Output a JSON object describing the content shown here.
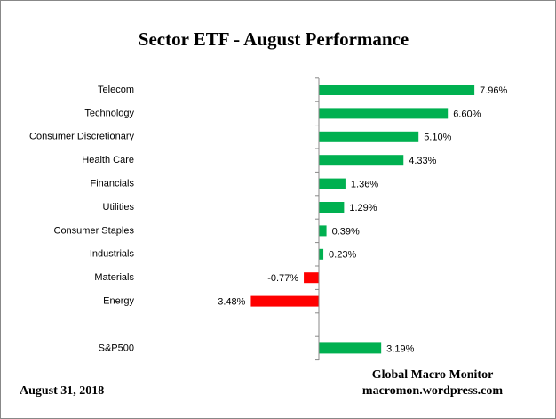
{
  "chart_data": {
    "type": "hbar",
    "title": "Sector ETF - August Performance",
    "categories": [
      "Telecom",
      "Technology",
      "Consumer Discretionary",
      "Health Care",
      "Financials",
      "Utilities",
      "Consumer Staples",
      "Industrials",
      "Materials",
      "Energy",
      null,
      "S&P500"
    ],
    "values": [
      7.96,
      6.6,
      5.1,
      4.33,
      1.36,
      1.29,
      0.39,
      0.23,
      -0.77,
      -3.48,
      null,
      3.19
    ],
    "value_labels": [
      "7.96%",
      "6.60%",
      "5.10%",
      "4.33%",
      "1.36%",
      "1.29%",
      "0.39%",
      "0.23%",
      "-0.77%",
      "-3.48%",
      null,
      "3.19%"
    ],
    "color": "#00b050",
    "negative_color": "#ff0000",
    "xlim": [
      -4,
      9
    ],
    "date": "August 31, 2018",
    "source": [
      "Global Macro Monitor",
      "macromon.wordpress.com"
    ]
  }
}
